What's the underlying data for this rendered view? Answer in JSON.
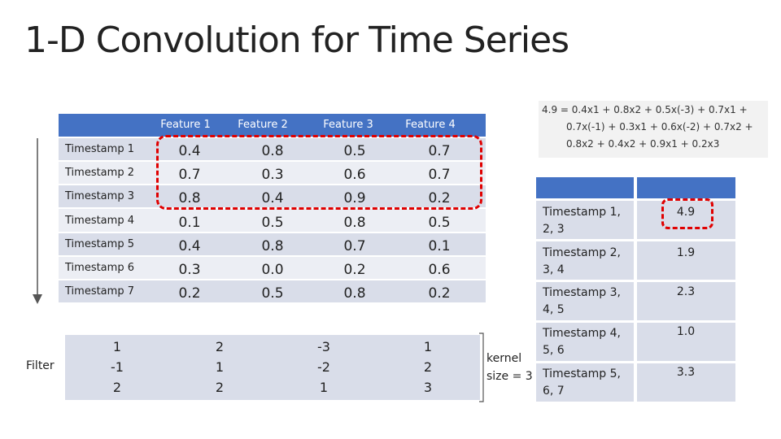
{
  "title": "1-D Convolution for Time Series",
  "table": {
    "headers": [
      "Feature 1",
      "Feature 2",
      "Feature 3",
      "Feature 4"
    ],
    "rows": [
      {
        "label": "Timestamp 1",
        "values": [
          "0.4",
          "0.8",
          "0.5",
          "0.7"
        ]
      },
      {
        "label": "Timestamp 2",
        "values": [
          "0.7",
          "0.3",
          "0.6",
          "0.7"
        ]
      },
      {
        "label": "Timestamp 3",
        "values": [
          "0.8",
          "0.4",
          "0.9",
          "0.2"
        ]
      },
      {
        "label": "Timestamp 4",
        "values": [
          "0.1",
          "0.5",
          "0.8",
          "0.5"
        ]
      },
      {
        "label": "Timestamp 5",
        "values": [
          "0.4",
          "0.8",
          "0.7",
          "0.1"
        ]
      },
      {
        "label": "Timestamp 6",
        "values": [
          "0.3",
          "0.0",
          "0.2",
          "0.6"
        ]
      },
      {
        "label": "Timestamp 7",
        "values": [
          "0.2",
          "0.5",
          "0.8",
          "0.2"
        ]
      }
    ]
  },
  "filter": {
    "label": "Filter",
    "columns": [
      [
        "1",
        "-1",
        "2"
      ],
      [
        "2",
        "1",
        "2"
      ],
      [
        "-3",
        "-2",
        "1"
      ],
      [
        "1",
        "2",
        "3"
      ]
    ]
  },
  "kernel": {
    "line1": "kernel",
    "line2": "size = 3"
  },
  "formula": {
    "line1": "4.9 = 0.4x1 + 0.8x2 + 0.5x(-3) + 0.7x1 +",
    "line2": "0.7x(-1) + 0.3x1 + 0.6x(-2) + 0.7x2 +",
    "line3": "0.8x2 + 0.4x2 + 0.9x1 + 0.2x3"
  },
  "result_table": {
    "rows": [
      {
        "line1": "Timestamp 1,",
        "line2": "2, 3",
        "value": "4.9"
      },
      {
        "line1": "Timestamp 2,",
        "line2": "3, 4",
        "value": "1.9"
      },
      {
        "line1": "Timestamp 3,",
        "line2": "4, 5",
        "value": "2.3"
      },
      {
        "line1": "Timestamp 4,",
        "line2": "5, 6",
        "value": "1.0"
      },
      {
        "line1": "Timestamp 5,",
        "line2": "6, 7",
        "value": "3.3"
      }
    ]
  },
  "colors": {
    "header": "#4472c4",
    "band": "#d9dde9",
    "highlight": "#e00000"
  }
}
